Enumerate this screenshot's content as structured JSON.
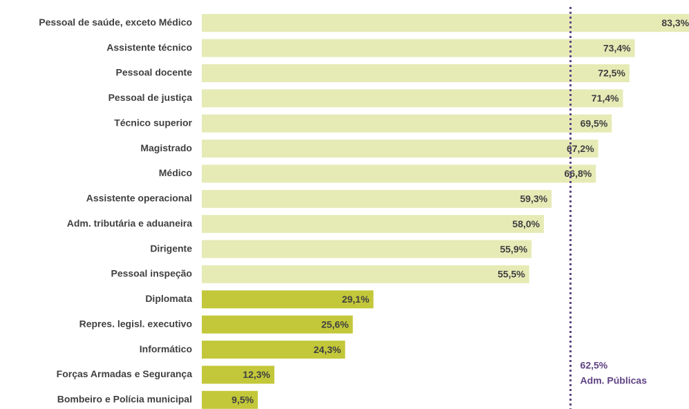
{
  "chart_data": {
    "type": "barh",
    "categories": [
      "Pessoal de saúde, exceto Médico",
      "Assistente técnico",
      "Pessoal docente",
      "Pessoal de justiça",
      "Técnico superior",
      "Magistrado",
      "Médico",
      "Assistente operacional",
      "Adm. tributária e aduaneira",
      "Dirigente",
      "Pessoal inspeção",
      "Diplomata",
      "Repres. legisl. executivo",
      "Informático",
      "Forças Armadas e Segurança",
      "Bombeiro e Polícia municipal"
    ],
    "values": [
      83.3,
      73.4,
      72.5,
      71.4,
      69.5,
      67.2,
      66.8,
      59.3,
      58.0,
      55.9,
      55.5,
      29.1,
      25.6,
      24.3,
      12.3,
      9.5
    ],
    "value_labels": [
      "83,3%",
      "73,4%",
      "72,5%",
      "71,4%",
      "69,5%",
      "67,2%",
      "66,8%",
      "59,3%",
      "58,0%",
      "55,9%",
      "55,5%",
      "29,1%",
      "25,6%",
      "24,3%",
      "12,3%",
      "9,5%"
    ],
    "colors": [
      "#e6ebb6",
      "#e6ebb6",
      "#e6ebb6",
      "#e6ebb6",
      "#e6ebb6",
      "#e6ebb6",
      "#e6ebb6",
      "#e6ebb6",
      "#e6ebb6",
      "#e6ebb6",
      "#e6ebb6",
      "#c3c83a",
      "#c3c83a",
      "#c3c83a",
      "#c3c83a",
      "#c3c83a"
    ],
    "xlim": [
      0,
      82
    ],
    "reference_line": {
      "value": 62.5,
      "label": "62,5%",
      "text": "Adm. Públicas",
      "color": "#5e4383"
    }
  }
}
